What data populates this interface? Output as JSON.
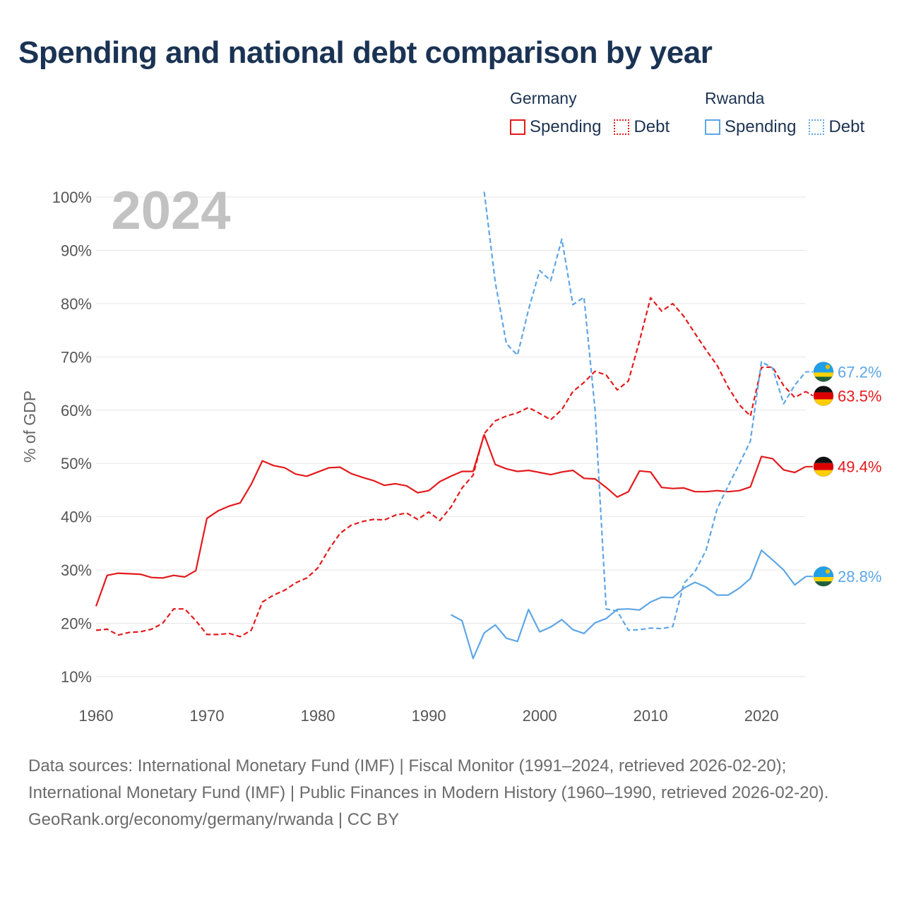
{
  "title": "Spending and national debt comparison by year",
  "legend": {
    "groups": [
      {
        "name": "Germany",
        "color": "#e41a1c",
        "items": [
          {
            "label": "Spending",
            "style": "solid"
          },
          {
            "label": "Debt",
            "style": "dotted"
          }
        ]
      },
      {
        "name": "Rwanda",
        "color": "#5ea6e6",
        "items": [
          {
            "label": "Spending",
            "style": "solid"
          },
          {
            "label": "Debt",
            "style": "dotted"
          }
        ]
      }
    ]
  },
  "chart_data": {
    "type": "line",
    "year_label": "2024",
    "ylabel": "% of GDP",
    "xlabel": "",
    "ylim": [
      10,
      100
    ],
    "xlim": [
      1960,
      2024
    ],
    "x_ticks": [
      1960,
      1970,
      1980,
      1990,
      2000,
      2010,
      2020
    ],
    "y_ticks": [
      10,
      20,
      30,
      40,
      50,
      60,
      70,
      80,
      90,
      100
    ],
    "y_tick_suffix": "%",
    "grid": true,
    "series": [
      {
        "name": "Germany Spending",
        "country": "Germany",
        "metric": "Spending",
        "color": "#e41a1c",
        "dash": "solid",
        "end_label": "49.4%",
        "flag": "germany",
        "x_start": 1960,
        "values": [
          23.2,
          29.0,
          29.4,
          29.3,
          29.2,
          28.6,
          28.5,
          29.0,
          28.7,
          29.9,
          39.7,
          41.1,
          42.0,
          42.6,
          46.1,
          50.5,
          49.6,
          49.2,
          48.0,
          47.6,
          48.4,
          49.2,
          49.3,
          48.1,
          47.4,
          46.8,
          45.9,
          46.2,
          45.8,
          44.5,
          44.9,
          46.6,
          47.6,
          48.5,
          48.5,
          55.4,
          49.8,
          49.0,
          48.5,
          48.7,
          48.3,
          47.9,
          48.4,
          48.7,
          47.2,
          47.1,
          45.5,
          43.7,
          44.7,
          48.6,
          48.4,
          45.5,
          45.3,
          45.4,
          44.7,
          44.7,
          44.9,
          44.7,
          44.9,
          45.6,
          51.3,
          50.9,
          48.8,
          48.3,
          49.4
        ]
      },
      {
        "name": "Germany Debt",
        "country": "Germany",
        "metric": "Debt",
        "color": "#e41a1c",
        "dash": "dashed",
        "end_label": "63.5%",
        "flag": "germany",
        "x_start": 1960,
        "values": [
          18.7,
          18.9,
          17.8,
          18.3,
          18.4,
          18.9,
          20.0,
          22.7,
          22.7,
          20.5,
          17.9,
          17.9,
          18.1,
          17.5,
          18.7,
          24.0,
          25.3,
          26.2,
          27.6,
          28.5,
          30.4,
          33.9,
          36.9,
          38.4,
          39.1,
          39.5,
          39.4,
          40.3,
          40.7,
          39.5,
          40.9,
          39.3,
          41.8,
          45.4,
          47.8,
          55.6,
          58.0,
          58.9,
          59.5,
          60.5,
          59.4,
          58.2,
          60.1,
          63.5,
          65.2,
          67.3,
          66.6,
          63.8,
          65.5,
          73.0,
          81.1,
          78.6,
          80.0,
          77.6,
          74.4,
          71.3,
          68.4,
          64.3,
          61.0,
          58.9,
          68.0,
          68.1,
          64.6,
          62.4,
          63.5
        ]
      },
      {
        "name": "Rwanda Spending",
        "country": "Rwanda",
        "metric": "Spending",
        "color": "#5ea6e6",
        "dash": "solid",
        "end_label": "28.8%",
        "flag": "rwanda",
        "x_start": 1992,
        "values": [
          21.6,
          20.5,
          13.4,
          18.2,
          19.7,
          17.2,
          16.6,
          22.6,
          18.4,
          19.3,
          20.7,
          18.8,
          18.1,
          20.1,
          20.9,
          22.6,
          22.7,
          22.5,
          24.0,
          24.9,
          24.8,
          26.6,
          27.7,
          26.8,
          25.3,
          25.3,
          26.6,
          28.4,
          33.7,
          31.9,
          30.0,
          27.2,
          28.8
        ]
      },
      {
        "name": "Rwanda Debt",
        "country": "Rwanda",
        "metric": "Debt",
        "color": "#5ea6e6",
        "dash": "dashed",
        "end_label": "67.2%",
        "flag": "rwanda",
        "x_start": 1995,
        "values": [
          101.0,
          84.0,
          72.5,
          70.3,
          78.9,
          86.2,
          84.3,
          92.1,
          79.8,
          81.2,
          60.0,
          22.7,
          22.3,
          18.7,
          18.8,
          19.1,
          19.0,
          19.4,
          27.5,
          29.7,
          33.7,
          41.5,
          45.8,
          49.9,
          54.2,
          69.1,
          67.9,
          61.2,
          64.7,
          67.2
        ]
      }
    ]
  },
  "footer": {
    "sources": "Data sources: International Monetary Fund (IMF) | Fiscal Monitor (1991–2024, retrieved 2026-02-20); International Monetary Fund (IMF) | Public Finances in Modern History (1960–1990, retrieved 2026-02-20).",
    "credit": "GeoRank.org/economy/germany/rwanda | CC BY"
  }
}
